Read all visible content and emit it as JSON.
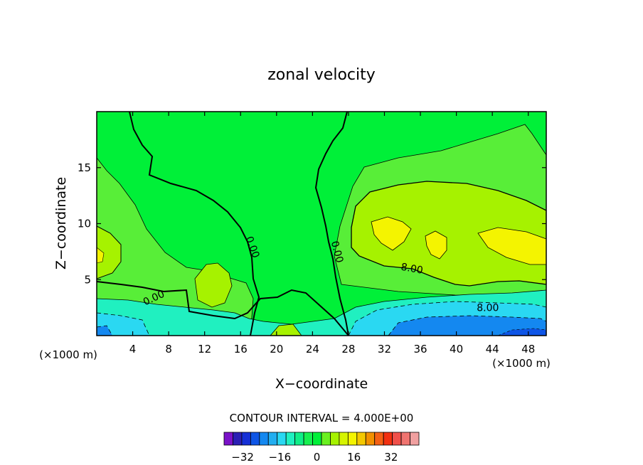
{
  "chart_data": {
    "type": "heatmap",
    "title": "zonal velocity",
    "xlabel": "X−coordinate",
    "ylabel": "Z−coordinate",
    "x_unit_left": "(×1000 m)",
    "x_unit_right": "(×1000 m)",
    "xlim": [
      0,
      50
    ],
    "ylim": [
      0,
      20
    ],
    "x_ticks": [
      4,
      8,
      12,
      16,
      20,
      24,
      28,
      32,
      36,
      40,
      44,
      48
    ],
    "y_ticks": [
      5,
      10,
      15
    ],
    "contour_interval_text": "CONTOUR INTERVAL = 4.000E+00",
    "contour_labels": [
      {
        "text": "0.00",
        "x": 17.0,
        "z": 7.8,
        "angle": 70
      },
      {
        "text": "0.00",
        "x": 26.4,
        "z": 7.4,
        "angle": 75
      },
      {
        "text": "0.00",
        "x": 6.5,
        "z": 3.1,
        "angle": -25
      },
      {
        "text": "8.00",
        "x": 35.0,
        "z": 5.7,
        "angle": 10
      },
      {
        "text": "8.00",
        "x": 43.5,
        "z": 2.2,
        "angle": 0
      }
    ],
    "colorbar": {
      "colors": [
        "#7a12c8",
        "#2b1fb4",
        "#1530d6",
        "#0e55e6",
        "#1488f0",
        "#22aef0",
        "#2ad8f2",
        "#20f0c0",
        "#10ee88",
        "#16f050",
        "#00f038",
        "#6af020",
        "#a6f200",
        "#d6f400",
        "#f4f400",
        "#f4c800",
        "#f29000",
        "#f46014",
        "#f23010",
        "#f0504a",
        "#f07470",
        "#f0a0a0"
      ],
      "tick_labels": [
        "−32",
        "−16",
        "0",
        "16",
        "32"
      ],
      "tick_values": [
        -32,
        -16,
        0,
        16,
        32
      ],
      "range": [
        -40,
        44
      ]
    },
    "colors": {
      "zero_band": "#00f038",
      "light_green": "#58ee38",
      "yellow_green": "#a6f200",
      "yellow": "#f4f400",
      "cyan": "#2ad8f2",
      "blue": "#1488f0",
      "mint": "#20f0c0"
    }
  }
}
